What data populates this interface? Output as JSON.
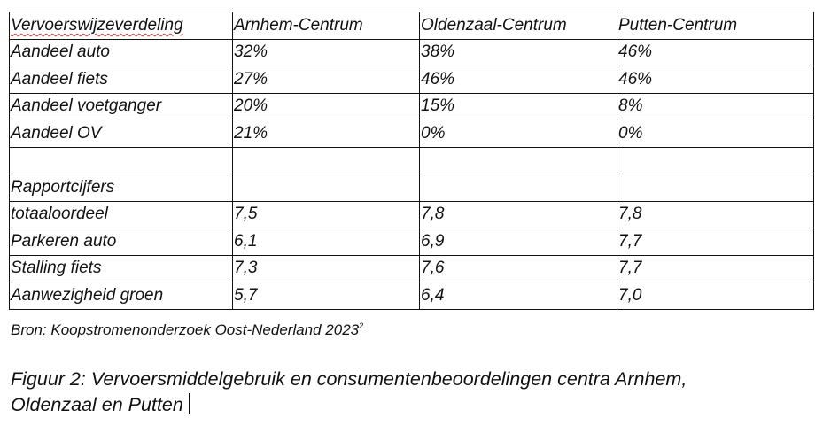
{
  "table": {
    "header": [
      "Vervoerswijzeverdeling",
      "Arnhem-Centrum",
      "Oldenzaal-Centrum",
      "Putten-Centrum"
    ],
    "rows": [
      [
        "Aandeel auto",
        "32%",
        "38%",
        "46%"
      ],
      [
        "Aandeel fiets",
        "27%",
        "46%",
        "46%"
      ],
      [
        "Aandeel voetganger",
        "20%",
        "15%",
        "8%"
      ],
      [
        "Aandeel OV",
        "21%",
        "0%",
        "0%"
      ]
    ]
  },
  "ratings": {
    "title": "Rapportcijfers",
    "rows": [
      [
        "totaaloordeel",
        "7,5",
        "7,8",
        "7,8"
      ],
      [
        "Parkeren auto",
        "6,1",
        "6,9",
        "7,7"
      ],
      [
        "Stalling fiets",
        "7,3",
        "7,6",
        "7,7"
      ],
      [
        "Aanwezigheid groen",
        "5,7",
        "6,4",
        "7,0"
      ]
    ]
  },
  "source": {
    "text": "Bron: Koopstromenonderzoek Oost-Nederland 2023",
    "note": "2"
  },
  "caption": "Figuur 2: Vervoersmiddelgebruik en consumentenbeoordelingen centra Arnhem, Oldenzaal en Putten"
}
